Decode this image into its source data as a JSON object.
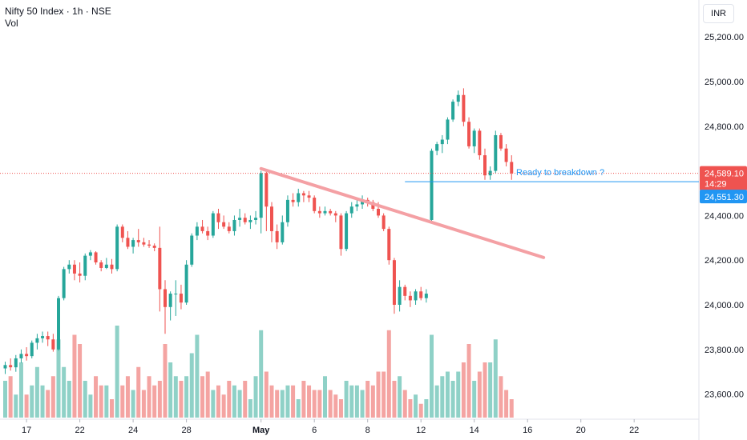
{
  "header": {
    "symbol_line": "Nifty 50 Index · 1h · NSE",
    "volume_label": "Vol"
  },
  "price_scale": {
    "currency": "INR"
  },
  "colors": {
    "up": "#26a69a",
    "down": "#ef5350",
    "up_vol": "#8fd1c7",
    "down_vol": "#f4a4a2",
    "trendline": "#f4a0a4",
    "annotation": "#2196f3"
  },
  "chart_data": {
    "type": "candlestick",
    "symbol": "Nifty 50 Index",
    "interval": "1h",
    "exchange": "NSE",
    "currency": "INR",
    "y_ticks": [
      23600,
      23800,
      24000,
      24200,
      24400,
      24800,
      25000,
      25200
    ],
    "y_tick_labels": [
      "23,600.00",
      "23,800.00",
      "24,000.00",
      "24,200.00",
      "24,400.00",
      "24,800.00",
      "25,000.00",
      "25,200.00"
    ],
    "x_labels": [
      {
        "label": "17",
        "bar": 4
      },
      {
        "label": "22",
        "bar": 14
      },
      {
        "label": "24",
        "bar": 24
      },
      {
        "label": "28",
        "bar": 34
      },
      {
        "label": "May",
        "bar": 48,
        "bold": true
      },
      {
        "label": "6",
        "bar": 58
      },
      {
        "label": "8",
        "bar": 68
      },
      {
        "label": "12",
        "bar": 78
      },
      {
        "label": "14",
        "bar": 88
      },
      {
        "label": "16",
        "bar": 98
      },
      {
        "label": "20",
        "bar": 108
      },
      {
        "label": "22",
        "bar": 118
      }
    ],
    "candles": [
      [
        23715,
        23745,
        23690,
        23730
      ],
      [
        23730,
        23760,
        23705,
        23720
      ],
      [
        23720,
        23775,
        23700,
        23760
      ],
      [
        23760,
        23800,
        23740,
        23780
      ],
      [
        23780,
        23810,
        23750,
        23770
      ],
      [
        23770,
        23840,
        23760,
        23830
      ],
      [
        23830,
        23870,
        23800,
        23850
      ],
      [
        23850,
        23880,
        23830,
        23860
      ],
      [
        23860,
        23880,
        23815,
        23845
      ],
      [
        23845,
        23870,
        23790,
        23800
      ],
      [
        23800,
        24040,
        23795,
        24030
      ],
      [
        24030,
        24170,
        24020,
        24160
      ],
      [
        24160,
        24200,
        24140,
        24180
      ],
      [
        24180,
        24200,
        24110,
        24140
      ],
      [
        24140,
        24190,
        24100,
        24130
      ],
      [
        24130,
        24230,
        24110,
        24220
      ],
      [
        24220,
        24245,
        24200,
        24235
      ],
      [
        24235,
        24240,
        24180,
        24190
      ],
      [
        24190,
        24200,
        24150,
        24165
      ],
      [
        24165,
        24210,
        24160,
        24180
      ],
      [
        24180,
        24205,
        24140,
        24160
      ],
      [
        24160,
        24360,
        24150,
        24350
      ],
      [
        24350,
        24360,
        24280,
        24300
      ],
      [
        24300,
        24330,
        24250,
        24260
      ],
      [
        24260,
        24300,
        24230,
        24290
      ],
      [
        24290,
        24340,
        24260,
        24280
      ],
      [
        24280,
        24300,
        24260,
        24270
      ],
      [
        24270,
        24290,
        24255,
        24265
      ],
      [
        24265,
        24275,
        24240,
        24255
      ],
      [
        24255,
        24350,
        23970,
        24070
      ],
      [
        24070,
        24110,
        23870,
        23990
      ],
      [
        23990,
        24060,
        23930,
        24050
      ],
      [
        24050,
        24110,
        23950,
        24050
      ],
      [
        24050,
        24090,
        23980,
        24010
      ],
      [
        24010,
        24200,
        24000,
        24180
      ],
      [
        24180,
        24320,
        24170,
        24310
      ],
      [
        24310,
        24370,
        24290,
        24350
      ],
      [
        24350,
        24380,
        24320,
        24330
      ],
      [
        24330,
        24350,
        24290,
        24310
      ],
      [
        24310,
        24420,
        24300,
        24410
      ],
      [
        24410,
        24430,
        24340,
        24370
      ],
      [
        24370,
        24400,
        24340,
        24350
      ],
      [
        24350,
        24370,
        24320,
        24330
      ],
      [
        24330,
        24400,
        24310,
        24380
      ],
      [
        24380,
        24430,
        24350,
        24390
      ],
      [
        24390,
        24410,
        24360,
        24370
      ],
      [
        24370,
        24400,
        24340,
        24380
      ],
      [
        24380,
        24420,
        24360,
        24390
      ],
      [
        24390,
        24600,
        24320,
        24590
      ],
      [
        24590,
        24600,
        24330,
        24440
      ],
      [
        24440,
        24460,
        24280,
        24330
      ],
      [
        24330,
        24360,
        24250,
        24280
      ],
      [
        24280,
        24400,
        24270,
        24370
      ],
      [
        24370,
        24490,
        24350,
        24470
      ],
      [
        24470,
        24500,
        24440,
        24460
      ],
      [
        24460,
        24520,
        24440,
        24500
      ],
      [
        24500,
        24510,
        24460,
        24490
      ],
      [
        24490,
        24510,
        24460,
        24480
      ],
      [
        24480,
        24490,
        24410,
        24420
      ],
      [
        24420,
        24440,
        24390,
        24410
      ],
      [
        24410,
        24440,
        24400,
        24420
      ],
      [
        24420,
        24430,
        24400,
        24410
      ],
      [
        24410,
        24420,
        24370,
        24400
      ],
      [
        24400,
        24410,
        24220,
        24250
      ],
      [
        24250,
        24420,
        24240,
        24410
      ],
      [
        24410,
        24460,
        24390,
        24440
      ],
      [
        24440,
        24470,
        24420,
        24450
      ],
      [
        24450,
        24490,
        24430,
        24470
      ],
      [
        24470,
        24480,
        24440,
        24460
      ],
      [
        24460,
        24470,
        24420,
        24430
      ],
      [
        24430,
        24460,
        24390,
        24400
      ],
      [
        24400,
        24410,
        24330,
        24340
      ],
      [
        24340,
        24350,
        24180,
        24200
      ],
      [
        24200,
        24210,
        23960,
        24000
      ],
      [
        24000,
        24110,
        23970,
        24080
      ],
      [
        24080,
        24090,
        24020,
        24040
      ],
      [
        24040,
        24060,
        23990,
        24020
      ],
      [
        24020,
        24070,
        24000,
        24060
      ],
      [
        24060,
        24080,
        24020,
        24030
      ],
      [
        24030,
        24070,
        24010,
        24050
      ],
      [
        24380,
        24700,
        24370,
        24690
      ],
      [
        24690,
        24730,
        24670,
        24720
      ],
      [
        24720,
        24760,
        24680,
        24740
      ],
      [
        24740,
        24840,
        24720,
        24830
      ],
      [
        24830,
        24920,
        24820,
        24910
      ],
      [
        24910,
        24960,
        24890,
        24940
      ],
      [
        24940,
        24970,
        24800,
        24820
      ],
      [
        24820,
        24840,
        24700,
        24710
      ],
      [
        24710,
        24790,
        24680,
        24780
      ],
      [
        24780,
        24790,
        24650,
        24670
      ],
      [
        24670,
        24700,
        24560,
        24580
      ],
      [
        24580,
        24620,
        24560,
        24600
      ],
      [
        24600,
        24780,
        24590,
        24760
      ],
      [
        24760,
        24770,
        24690,
        24700
      ],
      [
        24700,
        24720,
        24620,
        24640
      ],
      [
        24640,
        24670,
        24560,
        24589
      ]
    ],
    "volumes": [
      40,
      45,
      25,
      60,
      25,
      35,
      55,
      35,
      30,
      45,
      85,
      55,
      40,
      90,
      80,
      40,
      25,
      45,
      35,
      35,
      20,
      100,
      35,
      45,
      30,
      55,
      30,
      45,
      35,
      40,
      80,
      60,
      45,
      40,
      45,
      70,
      90,
      45,
      50,
      30,
      35,
      25,
      40,
      35,
      30,
      40,
      20,
      45,
      95,
      50,
      35,
      30,
      30,
      35,
      35,
      20,
      40,
      35,
      30,
      30,
      45,
      30,
      25,
      20,
      40,
      35,
      35,
      30,
      40,
      35,
      50,
      50,
      95,
      40,
      45,
      30,
      20,
      25,
      15,
      20,
      90,
      35,
      45,
      50,
      40,
      50,
      60,
      80,
      40,
      50,
      60,
      60,
      85,
      45,
      30,
      20
    ],
    "annotations": [
      {
        "type": "trendline",
        "from": {
          "bar": 48,
          "price": 24610
        },
        "to": {
          "bar": 101,
          "price": 24212
        }
      },
      {
        "type": "horizontal_line",
        "price": 24551.3,
        "from_bar": 75,
        "label": "Ready to breakdown ?"
      }
    ],
    "last_price": {
      "value": 24589.1,
      "label": "24,589.10",
      "countdown": "14:29"
    },
    "level_tag": {
      "value": 24551.3,
      "label": "24,551.30"
    }
  }
}
